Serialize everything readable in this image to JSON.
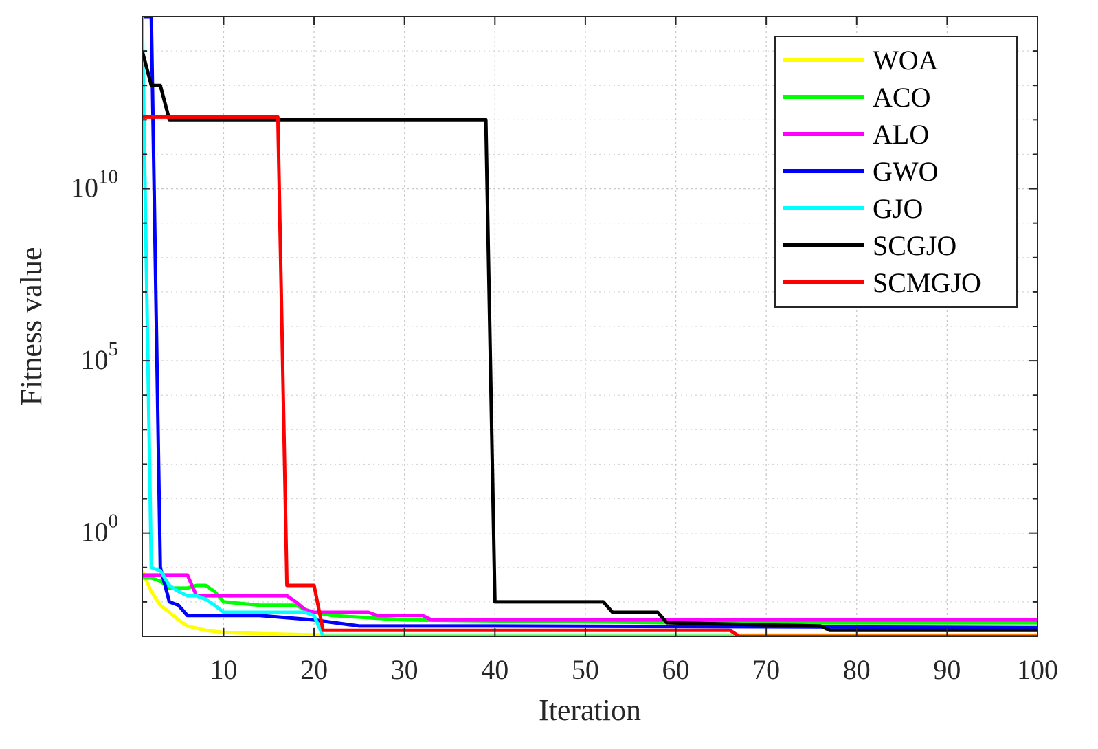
{
  "chart_data": {
    "type": "line",
    "xlabel": "Iteration",
    "ylabel": "Fitness value",
    "xlim": [
      1,
      100
    ],
    "ylim": [
      0.001,
      1000000000000000.0
    ],
    "yscale": "log",
    "grid": true,
    "legend_position": "top-right",
    "x_ticks": [
      10,
      20,
      30,
      40,
      50,
      60,
      70,
      80,
      90,
      100
    ],
    "x_tick_labels": [
      "10",
      "20",
      "30",
      "40",
      "50",
      "60",
      "70",
      "80",
      "90",
      "100"
    ],
    "y_ticks": [
      {
        "value": 1,
        "base": "10",
        "exp": "0"
      },
      {
        "value": 100000,
        "base": "10",
        "exp": "5"
      },
      {
        "value": 10000000000,
        "base": "10",
        "exp": "10"
      }
    ],
    "series": [
      {
        "name": "WOA",
        "color": "#ffff00",
        "points": [
          [
            1,
            0.08
          ],
          [
            2,
            0.02
          ],
          [
            3,
            0.008
          ],
          [
            4,
            0.005
          ],
          [
            5,
            0.003
          ],
          [
            6,
            0.002
          ],
          [
            8,
            0.0015
          ],
          [
            10,
            0.0013
          ],
          [
            14,
            0.0012
          ],
          [
            20,
            0.0011
          ],
          [
            100,
            0.0011
          ]
        ]
      },
      {
        "name": "ACO",
        "color": "#00ff00",
        "points": [
          [
            1,
            0.05
          ],
          [
            2,
            0.05
          ],
          [
            3,
            0.04
          ],
          [
            4,
            0.025
          ],
          [
            6,
            0.025
          ],
          [
            7,
            0.03
          ],
          [
            8,
            0.03
          ],
          [
            9,
            0.02
          ],
          [
            10,
            0.01
          ],
          [
            14,
            0.008
          ],
          [
            18,
            0.008
          ],
          [
            19,
            0.006
          ],
          [
            20,
            0.005
          ],
          [
            22,
            0.004
          ],
          [
            30,
            0.003
          ],
          [
            60,
            0.0025
          ],
          [
            100,
            0.0025
          ]
        ]
      },
      {
        "name": "ALO",
        "color": "#ff00ff",
        "points": [
          [
            1,
            0.06
          ],
          [
            5,
            0.06
          ],
          [
            6,
            0.06
          ],
          [
            7,
            0.015
          ],
          [
            15,
            0.015
          ],
          [
            17,
            0.015
          ],
          [
            18,
            0.01
          ],
          [
            19,
            0.006
          ],
          [
            20,
            0.005
          ],
          [
            26,
            0.005
          ],
          [
            27,
            0.004
          ],
          [
            32,
            0.004
          ],
          [
            33,
            0.003
          ],
          [
            100,
            0.003
          ]
        ]
      },
      {
        "name": "GWO",
        "color": "#0000ff",
        "points": [
          [
            1,
            1000000000000000.0
          ],
          [
            2,
            1000000000000000.0
          ],
          [
            3,
            0.1
          ],
          [
            4,
            0.01
          ],
          [
            5,
            0.008
          ],
          [
            6,
            0.004
          ],
          [
            14,
            0.004
          ],
          [
            20,
            0.003
          ],
          [
            25,
            0.002
          ],
          [
            40,
            0.002
          ],
          [
            100,
            0.0018
          ]
        ]
      },
      {
        "name": "GJO",
        "color": "#00ffff",
        "points": [
          [
            1,
            1000000000000000.0
          ],
          [
            2,
            0.1
          ],
          [
            3,
            0.08
          ],
          [
            4,
            0.03
          ],
          [
            5,
            0.02
          ],
          [
            6,
            0.015
          ],
          [
            7,
            0.015
          ],
          [
            8,
            0.012
          ],
          [
            9,
            0.008
          ],
          [
            10,
            0.005
          ],
          [
            19,
            0.005
          ],
          [
            20,
            0.004
          ],
          [
            21,
            0.001
          ],
          [
            100,
            0.001
          ]
        ]
      },
      {
        "name": "SCGJO",
        "color": "#000000",
        "points": [
          [
            1,
            100000000000000.0
          ],
          [
            2,
            10000000000000.0
          ],
          [
            3,
            10000000000000.0
          ],
          [
            4,
            1000000000000.0
          ],
          [
            38,
            1000000000000.0
          ],
          [
            39,
            1000000000000.0
          ],
          [
            40,
            0.01
          ],
          [
            52,
            0.01
          ],
          [
            53,
            0.005
          ],
          [
            57,
            0.005
          ],
          [
            58,
            0.005
          ],
          [
            59,
            0.0025
          ],
          [
            76,
            0.002
          ],
          [
            77,
            0.0015
          ],
          [
            100,
            0.0015
          ]
        ]
      },
      {
        "name": "SCMGJO",
        "color": "#ff0000",
        "points": [
          [
            1,
            1200000000000.0
          ],
          [
            16,
            1200000000000.0
          ],
          [
            17,
            0.03
          ],
          [
            19,
            0.03
          ],
          [
            20,
            0.03
          ],
          [
            21,
            0.0015
          ],
          [
            66,
            0.0015
          ],
          [
            67,
            0.001
          ],
          [
            100,
            0.001
          ]
        ]
      }
    ]
  }
}
